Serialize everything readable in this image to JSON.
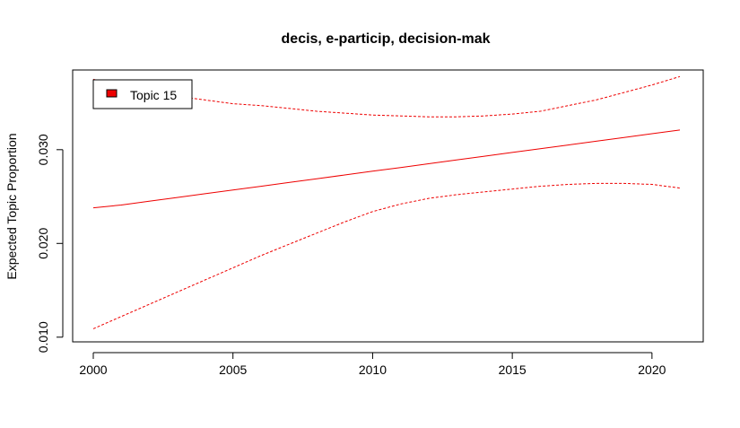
{
  "chart_data": {
    "type": "line",
    "title": "decis, e-particip, decision-mak",
    "xlabel": "",
    "ylabel": "Expected Topic Proportion",
    "xlim": [
      2000,
      2021
    ],
    "ylim": [
      0.0095,
      0.0385
    ],
    "x_ticks": [
      2000,
      2005,
      2010,
      2015,
      2020
    ],
    "x_tick_labels": [
      "2000",
      "2005",
      "2010",
      "2015",
      "2020"
    ],
    "y_ticks": [
      0.01,
      0.02,
      0.03
    ],
    "y_tick_labels": [
      "0.010",
      "0.020",
      "0.030"
    ],
    "legend": {
      "position": "top-left",
      "label": "Topic 15",
      "color": "#ee0000"
    },
    "grid": false,
    "color": "#ee0000",
    "x": [
      2000,
      2001,
      2002,
      2003,
      2004,
      2005,
      2006,
      2007,
      2008,
      2009,
      2010,
      2011,
      2012,
      2013,
      2014,
      2015,
      2016,
      2017,
      2018,
      2019,
      2020,
      2021
    ],
    "series": [
      {
        "role": "estimate",
        "style": "solid",
        "values": [
          0.0238,
          0.0241,
          0.0245,
          0.0249,
          0.0253,
          0.0257,
          0.0261,
          0.0265,
          0.0269,
          0.0273,
          0.0277,
          0.0281,
          0.0285,
          0.0289,
          0.0293,
          0.0297,
          0.0301,
          0.0305,
          0.0309,
          0.0313,
          0.0317,
          0.0321
        ]
      },
      {
        "role": "upper",
        "style": "dashed",
        "values": [
          0.0375,
          0.0368,
          0.0362,
          0.0357,
          0.0353,
          0.0349,
          0.0347,
          0.0344,
          0.0341,
          0.0339,
          0.0337,
          0.0336,
          0.0335,
          0.0335,
          0.0336,
          0.0338,
          0.0341,
          0.0347,
          0.0353,
          0.0361,
          0.0369,
          0.0378
        ]
      },
      {
        "role": "lower",
        "style": "dashed",
        "values": [
          0.0109,
          0.0122,
          0.0135,
          0.0148,
          0.0161,
          0.0174,
          0.0187,
          0.0199,
          0.0211,
          0.0223,
          0.0234,
          0.0242,
          0.0248,
          0.0252,
          0.0255,
          0.0258,
          0.0261,
          0.0263,
          0.0264,
          0.0264,
          0.0263,
          0.0259
        ]
      }
    ]
  }
}
